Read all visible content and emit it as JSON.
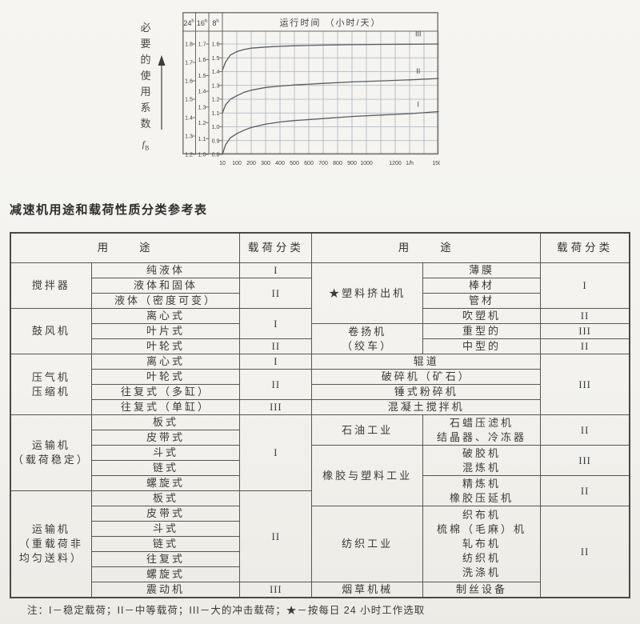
{
  "chart": {
    "title": "运行时间 （小时/天）",
    "y_axis_label_chars": [
      "必",
      "要",
      "的",
      "使",
      "用",
      "系",
      "数"
    ],
    "y_axis_symbol": "f",
    "y_axis_symbol_sub": "B",
    "scale_headers": [
      {
        "num": "24",
        "sup": "h"
      },
      {
        "num": "16",
        "sup": "h"
      },
      {
        "num": "8",
        "sup": "h"
      }
    ],
    "scales": [
      [
        "1.8",
        "1.7",
        "1.6",
        "1.5",
        "1.4",
        "1.3",
        "1.2"
      ],
      [
        "1.7",
        "1.6",
        "1.5",
        "1.4",
        "1.3",
        "1.2",
        "1.1",
        "1.0"
      ],
      [
        "1.6",
        "1.5",
        "1.4",
        "1.3",
        "1.2",
        "1.1",
        "1.0",
        "0.9",
        "0.8"
      ]
    ],
    "x_tick_labels": [
      "10",
      "100",
      "200",
      "300",
      "400",
      "500",
      "600",
      "700",
      "800",
      "900",
      "1000",
      "",
      "1200",
      "1/h",
      "",
      "1500"
    ],
    "curve_labels": [
      {
        "text": "III",
        "t": 1360,
        "v": 1.655
      },
      {
        "text": "II",
        "t": 1360,
        "v": 1.385
      },
      {
        "text": "I",
        "t": 1360,
        "v": 1.145
      }
    ],
    "colors": {
      "grid": "#a9b2be",
      "frame": "#6a675f",
      "curve": "#595c60",
      "text": "#3f4145"
    }
  },
  "chart_data": {
    "type": "line",
    "title": "运行时间 （小时/天）",
    "ylabel": "必要的使用系数 fB",
    "x_unit": "1/h",
    "xlim": [
      10,
      1500
    ],
    "y_scales": {
      "24h": [
        1.2,
        1.8
      ],
      "16h": [
        1.0,
        1.7
      ],
      "8h": [
        0.8,
        1.6
      ]
    },
    "grid": true,
    "series": [
      {
        "name": "III",
        "x": [
          10,
          30,
          60,
          100,
          150,
          200,
          300,
          400,
          500,
          700,
          900,
          1100,
          1300,
          1500
        ],
        "y": [
          1.41,
          1.47,
          1.52,
          1.545,
          1.56,
          1.57,
          1.578,
          1.583,
          1.587,
          1.592,
          1.595,
          1.597,
          1.598,
          1.6
        ]
      },
      {
        "name": "II",
        "x": [
          10,
          30,
          60,
          100,
          150,
          200,
          300,
          400,
          500,
          700,
          900,
          1100,
          1300,
          1500
        ],
        "y": [
          1.1,
          1.16,
          1.2,
          1.225,
          1.25,
          1.265,
          1.285,
          1.295,
          1.303,
          1.315,
          1.325,
          1.333,
          1.34,
          1.35
        ]
      },
      {
        "name": "I",
        "x": [
          10,
          30,
          60,
          100,
          150,
          200,
          300,
          400,
          500,
          700,
          900,
          1100,
          1300,
          1500
        ],
        "y": [
          0.8,
          0.87,
          0.92,
          0.95,
          0.975,
          0.995,
          1.02,
          1.035,
          1.045,
          1.06,
          1.075,
          1.085,
          1.095,
          1.11
        ]
      }
    ]
  },
  "table": {
    "title": "减速机用途和载荷性质分类参考表",
    "headers": {
      "use_left": "用　　途",
      "load_left": "载荷分类",
      "use_right": "用　　途",
      "load_right": "载荷分类"
    },
    "left": {
      "groups": [
        "搅拌器",
        "鼓风机",
        "压气机\n压缩机",
        "运输机\n（载荷稳定）",
        "运输机\n（重载荷非\n均匀送料）"
      ],
      "items": [
        "纯液体",
        "液体和固体",
        "液体（密度可变）",
        "离心式",
        "叶片式",
        "叶轮式",
        "离心式",
        "叶轮式",
        "往复式（多缸）",
        "往复式（单缸）",
        "板式",
        "皮带式",
        "斗式",
        "链式",
        "螺旋式",
        "板式",
        "皮带式",
        "斗式",
        "链式",
        "往复式",
        "螺旋式",
        "震动机"
      ],
      "loads": [
        "I",
        "II",
        "I",
        "II",
        "I",
        "II",
        "III",
        "I",
        "II",
        "III"
      ]
    },
    "right": {
      "groups": [
        "★塑料挤出机",
        "卷扬机\n（绞车）",
        "石油工业",
        "橡胶与塑料工业",
        "纺织工业",
        "烟草机械"
      ],
      "items": [
        "薄膜",
        "棒材",
        "管材",
        "吹塑机",
        "重型的",
        "中型的",
        "辊道",
        "破碎机（矿石）",
        "锤式粉碎机",
        "混凝土搅拌机",
        "石蜡压滤机\n结晶器、冷冻器",
        "破胶机\n混炼机",
        "精炼机\n橡胶压延机",
        "织布机\n梳棉（毛麻）机\n轧布机\n纺织机\n洗涤机",
        "制丝设备"
      ],
      "loads": [
        "I",
        "II",
        "III",
        "II",
        "III",
        "II",
        "III",
        "II",
        "II"
      ]
    }
  },
  "note": "注：I－稳定载荷；II－中等载荷；III－大的冲击载荷；★－按每日 24 小时工作选取"
}
